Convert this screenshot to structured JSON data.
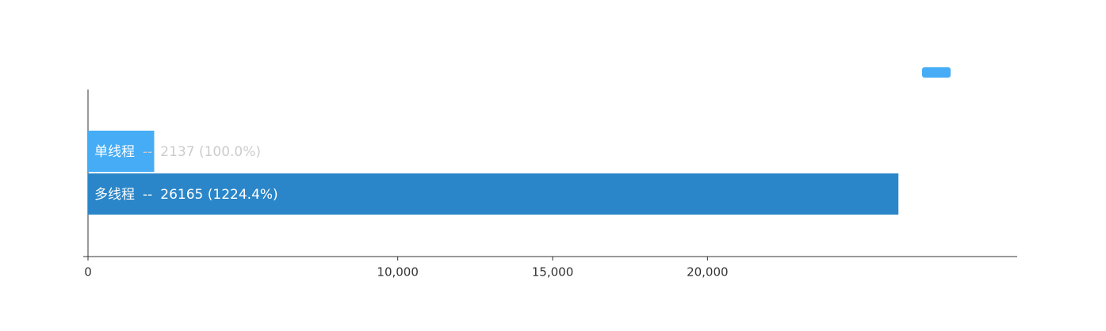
{
  "chart_data": {
    "type": "hbar",
    "categories": [
      "单线程",
      "多线程"
    ],
    "values": [
      2137,
      26165
    ],
    "value_labels": [
      "2137 (100.0%)",
      "26165 (1224.4%)"
    ],
    "label_separator": "--",
    "colors": [
      "#45acf5",
      "#2a86c8"
    ],
    "xlim": [
      0,
      30000
    ],
    "xticks": [
      0,
      {
        "value": 10000,
        "label": "10,000"
      },
      {
        "value": 15000,
        "label": "15,000"
      },
      {
        "value": 20000,
        "label": "20,000"
      }
    ]
  }
}
